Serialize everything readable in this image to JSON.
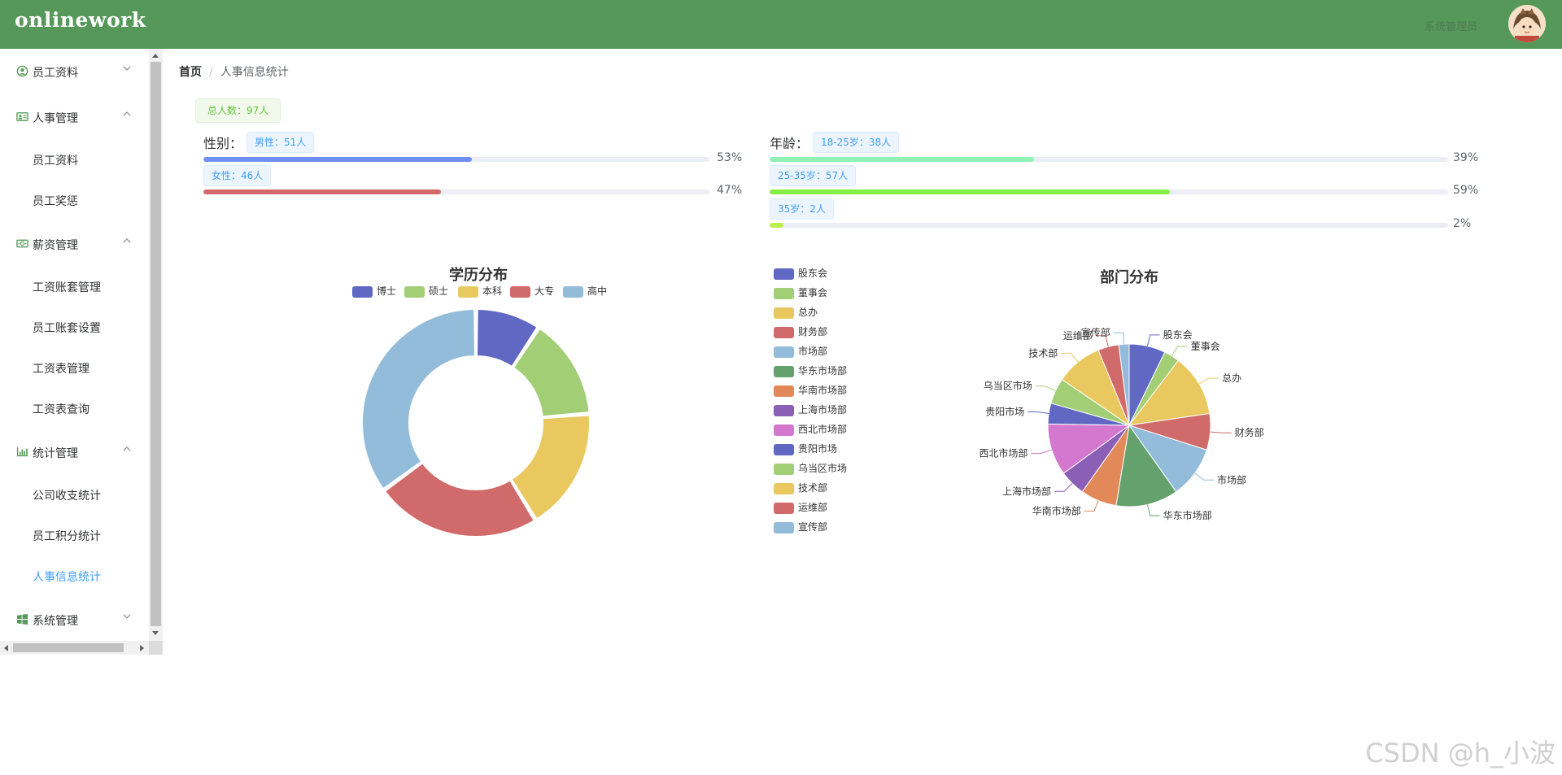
{
  "header": {
    "logo": "onlinework",
    "user_name": "系统管理员"
  },
  "sidebar": {
    "groups": [
      {
        "label": "员工资料",
        "icon": "user-circle-icon",
        "expanded": false,
        "items": []
      },
      {
        "label": "人事管理",
        "icon": "id-card-icon",
        "expanded": true,
        "items": [
          "员工资料",
          "员工奖惩"
        ]
      },
      {
        "label": "薪资管理",
        "icon": "money-icon",
        "expanded": true,
        "items": [
          "工资账套管理",
          "员工账套设置",
          "工资表管理",
          "工资表查询"
        ]
      },
      {
        "label": "统计管理",
        "icon": "bar-chart-icon",
        "expanded": true,
        "items": [
          "公司收支统计",
          "员工积分统计",
          "人事信息统计"
        ]
      },
      {
        "label": "系统管理",
        "icon": "windows-icon",
        "expanded": false,
        "items": []
      }
    ],
    "active_item": "人事信息统计"
  },
  "breadcrumb": {
    "home": "首页",
    "separator": "/",
    "current": "人事信息统计"
  },
  "stats": {
    "total": "总人数：97人",
    "gender": {
      "label": "性别：",
      "rows": [
        {
          "tag": "男性：51人",
          "percent_text": "53%",
          "percent": 53,
          "color": "#6f8ff8"
        },
        {
          "tag": "女性：46人",
          "percent_text": "47%",
          "percent": 47,
          "color": "#d36a6a"
        }
      ]
    },
    "age": {
      "label": "年龄：",
      "rows": [
        {
          "tag": "18-25岁：38人",
          "percent_text": "39%",
          "percent": 39,
          "color": "#8ef2b3"
        },
        {
          "tag": "25-35岁：57人",
          "percent_text": "59%",
          "percent": 59,
          "color": "#85f048"
        },
        {
          "tag": "35岁：2人",
          "percent_text": "2%",
          "percent": 2,
          "color": "#bdf04a"
        }
      ]
    }
  },
  "chart_data": [
    {
      "type": "pie",
      "title": "学历分布",
      "donut": true,
      "legend_position": "top",
      "categories": [
        "博士",
        "硕士",
        "本科",
        "大专",
        "高中"
      ],
      "values": [
        9,
        14,
        17,
        23,
        34
      ],
      "colors": [
        "#6168c4",
        "#a2ce76",
        "#e9c95f",
        "#d16a6a",
        "#93bcdb"
      ]
    },
    {
      "type": "pie",
      "title": "部门分布",
      "donut": false,
      "legend_position": "left",
      "categories": [
        "股东会",
        "董事会",
        "总办",
        "财务部",
        "市场部",
        "华东市场部",
        "华南市场部",
        "上海市场部",
        "西北市场部",
        "贵阳市场",
        "乌当区市场",
        "技术部",
        "运维部",
        "宣传部"
      ],
      "values": [
        7,
        3,
        12,
        7,
        10,
        12,
        7,
        5,
        10,
        4,
        5,
        9,
        4,
        2
      ],
      "colors": [
        "#6168c4",
        "#a2ce76",
        "#e9c95f",
        "#d16a6a",
        "#93bcdb",
        "#64a16c",
        "#e2895a",
        "#8a5fb5",
        "#d477cf",
        "#6168c4",
        "#a2ce76",
        "#e9c95f",
        "#d16a6a",
        "#93bcdb"
      ]
    }
  ],
  "watermark": "CSDN @h_小波"
}
